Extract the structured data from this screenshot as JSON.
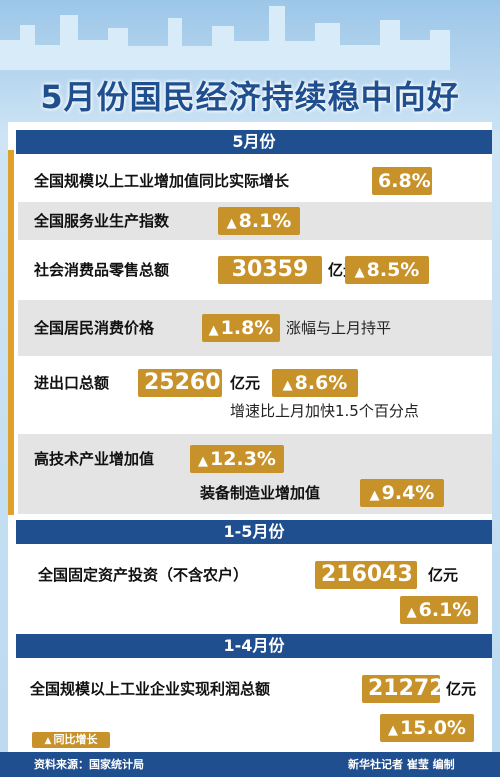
{
  "title": "5月份国民经济持续稳中向好",
  "sections": [
    {
      "header": "5月份",
      "items": [
        {
          "label": "全国规模以上工业增加值同比实际增长",
          "value": "6.8%"
        },
        {
          "label": "全国服务业生产指数",
          "growth": "8.1%"
        },
        {
          "label": "社会消费品零售总额",
          "value": "30359",
          "unit": "亿元",
          "growth": "8.5%"
        },
        {
          "label": "全国居民消费价格",
          "growth": "1.8%",
          "note": "涨幅与上月持平"
        },
        {
          "label": "进出口总额",
          "value": "25260",
          "unit": "亿元",
          "growth": "8.6%",
          "note": "增速比上月加快1.5个百分点"
        },
        {
          "label": "高技术产业增加值",
          "growth": "12.3%",
          "sub_label": "装备制造业增加值",
          "sub_growth": "9.4%"
        }
      ]
    },
    {
      "header": "1-5月份",
      "items": [
        {
          "label": "全国固定资产投资（不含农户）",
          "value": "216043",
          "unit": "亿元",
          "growth": "6.1%"
        }
      ]
    },
    {
      "header": "1-4月份",
      "items": [
        {
          "label": "全国规模以上工业企业实现利润总额",
          "value": "21272",
          "unit": "亿元",
          "growth": "15.0%"
        }
      ]
    }
  ],
  "legend": "同比增长",
  "source": "资料来源：国家统计局",
  "credit": "新华社记者 崔莹 编制"
}
